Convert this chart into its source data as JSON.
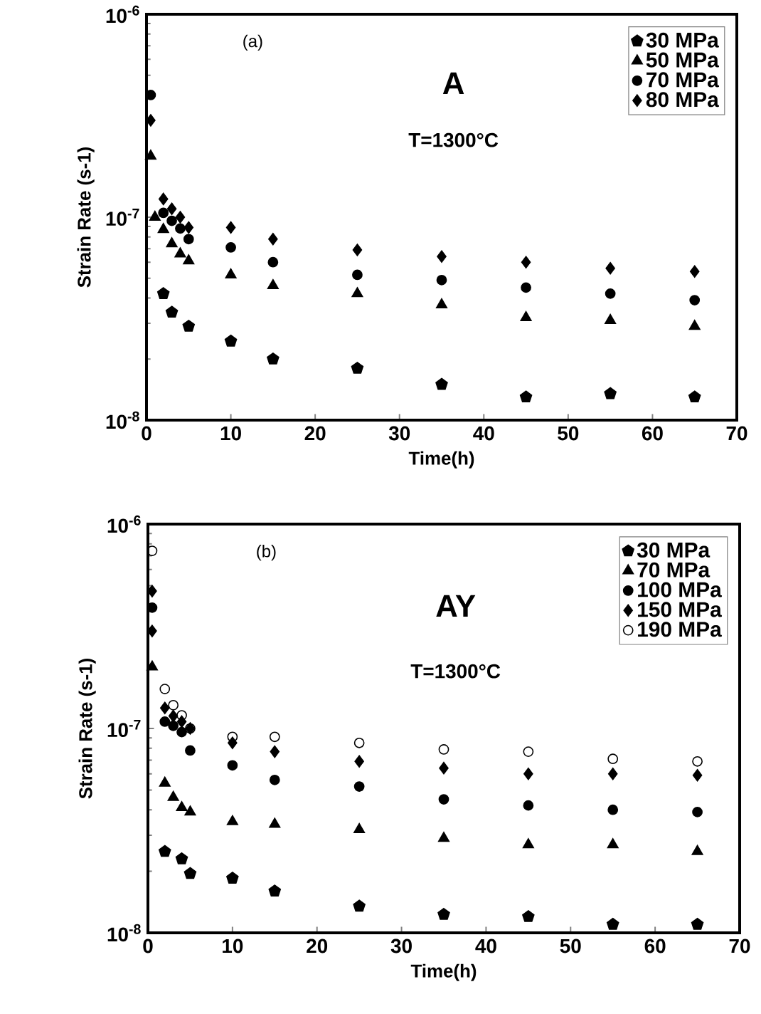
{
  "chart_data": [
    {
      "type": "scatter",
      "xlabel": "Time(h)",
      "ylabel": "Strain Rate (s-1)",
      "annotations": [
        "(a)",
        "A",
        "T=1300°C"
      ],
      "log": "y",
      "legend": "top right",
      "xlim": [
        0,
        70
      ],
      "xticks": [
        0,
        10,
        20,
        30,
        40,
        50,
        60,
        70
      ],
      "ylim": [
        1e-08,
        1e-06
      ],
      "yticks": [
        {
          "value": 1e-08,
          "label": "10$^{-8}$"
        },
        {
          "value": 1e-07,
          "label": "10$^{-7}$"
        },
        {
          "value": 1e-06,
          "label": "10$^{-6}$"
        }
      ],
      "series": [
        {
          "name": "30 MPa",
          "color": "#000000",
          "x": [
            2,
            3,
            5,
            10,
            15,
            25,
            35,
            45,
            55,
            65
          ],
          "values": [
            4.2e-08,
            3.4e-08,
            2.9e-08,
            2.45e-08,
            2e-08,
            1.8e-08,
            1.5e-08,
            1.3e-08,
            1.35e-08,
            1.3e-08
          ]
        },
        {
          "name": "50 MPa",
          "color": "#000000",
          "marker": "triangle",
          "x": [
            0.5,
            1,
            2,
            3,
            4,
            5,
            10,
            15,
            25,
            35,
            45,
            55,
            65
          ],
          "values": [
            2e-07,
            1e-07,
            8.7e-08,
            7.4e-08,
            6.6e-08,
            6.1e-08,
            5.2e-08,
            4.6e-08,
            4.2e-08,
            3.7e-08,
            3.2e-08,
            3.1e-08,
            2.9e-08
          ]
        },
        {
          "name": "70 MPa",
          "color": "#000000",
          "marker": "circle",
          "x": [
            0.5,
            2,
            3,
            4,
            5,
            10,
            15,
            25,
            35,
            45,
            55,
            65
          ],
          "values": [
            4e-07,
            1.05e-07,
            9.6e-08,
            8.8e-08,
            7.8e-08,
            7.1e-08,
            6e-08,
            5.2e-08,
            4.9e-08,
            4.5e-08,
            4.2e-08,
            3.9e-08
          ]
        },
        {
          "name": "80 MPa",
          "color": "#000000",
          "marker": "diamond",
          "x": [
            0.5,
            2,
            3,
            4,
            5,
            10,
            15,
            25,
            35,
            45,
            55,
            65
          ],
          "values": [
            3e-07,
            1.23e-07,
            1.1e-07,
            1e-07,
            8.9e-08,
            8.9e-08,
            7.8e-08,
            6.9e-08,
            6.4e-08,
            6e-08,
            5.6e-08,
            5.4e-08
          ]
        }
      ]
    },
    {
      "type": "scatter",
      "xlabel": "Time(h)",
      "ylabel": "Strain Rate (s-1)",
      "annotations": [
        "(b)",
        "AY",
        "T=1300°C"
      ],
      "log": "y",
      "legend": "top right",
      "xlim": [
        0,
        70
      ],
      "xticks": [
        0,
        10,
        20,
        30,
        40,
        50,
        60,
        70
      ],
      "ylim": [
        1e-08,
        1e-06
      ],
      "yticks": [
        {
          "value": 1e-08,
          "label": "10$^{-8}$"
        },
        {
          "value": 1e-07,
          "label": "10$^{-7}$"
        },
        {
          "value": 1e-06,
          "label": "10$^{-6}$"
        }
      ],
      "series": [
        {
          "name": "30 MPa",
          "color": "#000000",
          "x": [
            2,
            4,
            5,
            10,
            15,
            25,
            35,
            45,
            55,
            65
          ],
          "values": [
            2.5e-08,
            2.3e-08,
            1.95e-08,
            1.85e-08,
            1.6e-08,
            1.35e-08,
            1.23e-08,
            1.2e-08,
            1.1e-08,
            1.1e-08
          ]
        },
        {
          "name": "70 MPa",
          "color": "#000000",
          "marker": "triangle",
          "x": [
            0.5,
            2,
            3,
            4,
            5,
            10,
            15,
            25,
            35,
            45,
            55,
            65
          ],
          "values": [
            2e-07,
            5.4e-08,
            4.6e-08,
            4.1e-08,
            3.9e-08,
            3.5e-08,
            3.4e-08,
            3.2e-08,
            2.9e-08,
            2.7e-08,
            2.7e-08,
            2.5e-08
          ]
        },
        {
          "name": "100 MPa",
          "color": "#000000",
          "marker": "circle",
          "x": [
            0.5,
            2,
            3,
            4,
            5,
            10,
            15,
            25,
            35,
            45,
            55,
            65
          ],
          "values": [
            3.9e-07,
            1.08e-07,
            1.03e-07,
            9.6e-08,
            7.8e-08,
            6.6e-08,
            5.6e-08,
            5.2e-08,
            4.5e-08,
            4.2e-08,
            4e-08,
            3.9e-08
          ]
        },
        {
          "name": "150 MPa",
          "color": "#000000",
          "marker": "diamond",
          "x": [
            0.5,
            0.5,
            2,
            3,
            4,
            5,
            10,
            15,
            25,
            35,
            45,
            55,
            65
          ],
          "values": [
            4.7e-07,
            3e-07,
            1.26e-07,
            1.15e-07,
            1.08e-07,
            1e-07,
            8.5e-08,
            7.7e-08,
            6.9e-08,
            6.4e-08,
            6e-08,
            6e-08,
            5.9e-08
          ]
        },
        {
          "name": "190 MPa",
          "color": "#000000",
          "marker": "open circle",
          "x": [
            0.5,
            2,
            3,
            4,
            5,
            10,
            15,
            25,
            35,
            45,
            55,
            65
          ],
          "values": [
            7.4e-07,
            1.56e-07,
            1.3e-07,
            1.16e-07,
            1e-07,
            9.1e-08,
            9.1e-08,
            8.5e-08,
            7.9e-08,
            7.7e-08,
            7.1e-08,
            6.9e-08
          ]
        }
      ]
    }
  ]
}
